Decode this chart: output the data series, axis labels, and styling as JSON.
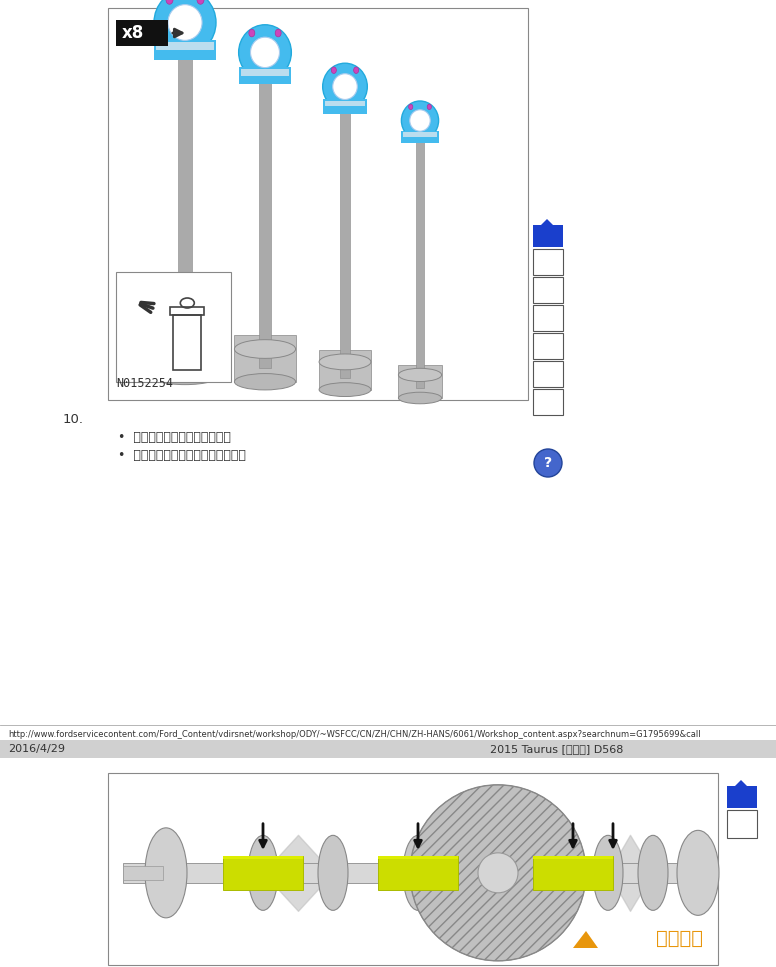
{
  "bg_color": "#ffffff",
  "url_text": "http://www.fordservicecontent.com/Ford_Content/vdirsnet/workshop/ODY/~WSFCC/CN/ZH/CHN/ZH-HANS/6061/Workshop_content.aspx?searchnum=G1795699&call",
  "footer_left": "2016/4/29",
  "footer_right": "2015 Taurus [金牛座] D568",
  "step_number": "10.",
  "bullet1": "测量两个方向的长度或距离。",
  "bullet2": "记录每个连杆轴颈的最小测量値。",
  "part_number": "N0152254",
  "sidebar_blue": "#1a3fcc",
  "page_divider_color": "#cccccc",
  "gray_bar_color": "#c8c8c8",
  "box_border_color": "#888888",
  "piston_blue": "#44bbee",
  "piston_blue2": "#22aadd",
  "piston_gray": "#b8b8b8",
  "piston_dark": "#888888",
  "bolt_magenta": "#cc44bb",
  "yellow_bearing": "#ccdd00",
  "watermark_orange": "#e8960c",
  "text_color": "#333333"
}
